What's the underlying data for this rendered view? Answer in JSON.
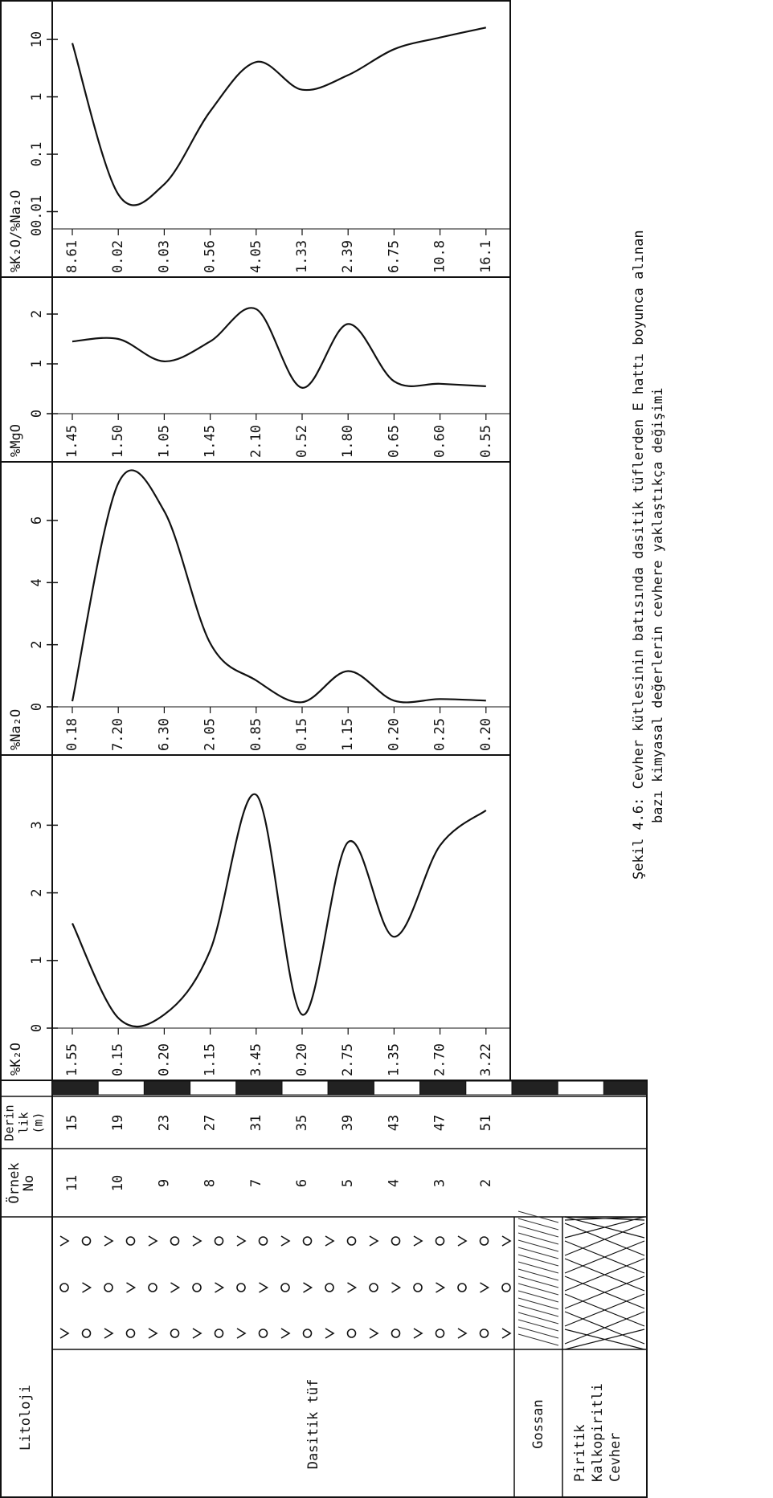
{
  "lithology": {
    "header": "Litoloji",
    "tuff": "Dasitik tüf",
    "gossan": "Gossan",
    "ore": [
      "Piritik",
      "Kalkopiritli",
      "Cevher"
    ]
  },
  "samples": {
    "no_header": [
      "Örnek",
      "No"
    ],
    "depth_header": [
      "Derin",
      "lik",
      "(m)"
    ],
    "numbers": [
      "11",
      "10",
      "9",
      "8",
      "7",
      "6",
      "5",
      "4",
      "3",
      "2"
    ],
    "depths": [
      15,
      19,
      23,
      27,
      31,
      35,
      39,
      43,
      47,
      51
    ]
  },
  "chart_data": [
    {
      "type": "line",
      "title": "%K₂O",
      "color": "#111",
      "values": [
        1.55,
        0.15,
        0.2,
        1.15,
        3.45,
        0.2,
        2.75,
        1.35,
        2.7,
        3.22
      ],
      "value_labels": [
        "1.55",
        "0.15",
        "0.20",
        "1.15",
        "3.45",
        "0.20",
        "2.75",
        "1.35",
        "2.70",
        "3.22"
      ],
      "ylim": [
        0,
        3.8
      ],
      "yticks": [
        0,
        1,
        2,
        3
      ]
    },
    {
      "type": "line",
      "title": "%Na₂O",
      "color": "#111",
      "values": [
        0.18,
        7.2,
        6.3,
        2.05,
        0.85,
        0.15,
        1.15,
        0.2,
        0.25,
        0.2
      ],
      "value_labels": [
        "0.18",
        "7.20",
        "6.30",
        "2.05",
        "0.85",
        "0.15",
        "1.15",
        "0.20",
        "0.25",
        "0.20"
      ],
      "ylim": [
        0,
        7.5
      ],
      "yticks": [
        0,
        2,
        4,
        6
      ]
    },
    {
      "type": "line",
      "title": "%MgO",
      "color": "#111",
      "values": [
        1.45,
        1.5,
        1.05,
        1.45,
        2.1,
        0.52,
        1.8,
        0.65,
        0.6,
        0.55
      ],
      "value_labels": [
        "1.45",
        "1.50",
        "1.05",
        "1.45",
        "2.10",
        "0.52",
        "1.80",
        "0.65",
        "0.60",
        "0.55"
      ],
      "ylim": [
        0,
        2.5
      ],
      "yticks": [
        0,
        1,
        2
      ]
    },
    {
      "type": "line",
      "title": "%K₂O/%Na₂O",
      "color": "#111",
      "log_scale": true,
      "axis_base_label": "0",
      "values": [
        8.61,
        0.02,
        0.03,
        0.56,
        4.05,
        1.33,
        2.39,
        6.75,
        10.8,
        16.1
      ],
      "value_labels": [
        "8.61",
        "0.02",
        "0.03",
        "0.56",
        "4.05",
        "1.33",
        "2.39",
        "6.75",
        "10.8",
        "16.1"
      ],
      "ylim": [
        0.005,
        30
      ],
      "yticks": [
        0.01,
        0.1,
        1,
        10
      ]
    }
  ],
  "caption": [
    "Şekil 4.6: Cevher kütlesinin batısında dasitik tüflerden  E hattı boyunca alınan",
    "bazı kimyasal değerlerin cevhere yaklaştıkça değişimi"
  ]
}
